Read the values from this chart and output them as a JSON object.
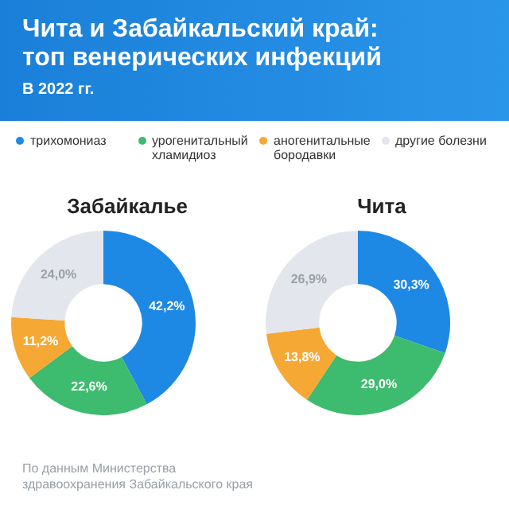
{
  "chart_data": [
    {
      "type": "donut",
      "title": "Забайкалье",
      "annotations": [
        "Чита и Забайкальский край: топ венерических инфекций",
        "В 2022 гг.",
        "По данным Министерства здравоохранения Забайкальского края"
      ],
      "legend": "top",
      "categories": [
        "трихомониаз",
        "урогенитальный хламидиоз",
        "аногенитальные бородавки",
        "другие болезни"
      ],
      "values": [
        42.2,
        22.6,
        11.2,
        24.0
      ],
      "value_labels": [
        "42,2%",
        "22,6%",
        "11,2%",
        "24,0%"
      ],
      "colors": [
        "#1e88e5",
        "#3dbb6e",
        "#f5a833",
        "#e3e6ec"
      ]
    },
    {
      "type": "donut",
      "title": "Чита",
      "categories": [
        null,
        null,
        null,
        null
      ],
      "values": [
        30.3,
        29.0,
        13.8,
        26.9
      ],
      "value_labels": [
        "30,3%",
        "29,0%",
        "13,8%",
        "26,9%"
      ],
      "colors": [
        "#1e88e5",
        "#3dbb6e",
        "#f5a833",
        "#e3e6ec"
      ]
    }
  ]
}
